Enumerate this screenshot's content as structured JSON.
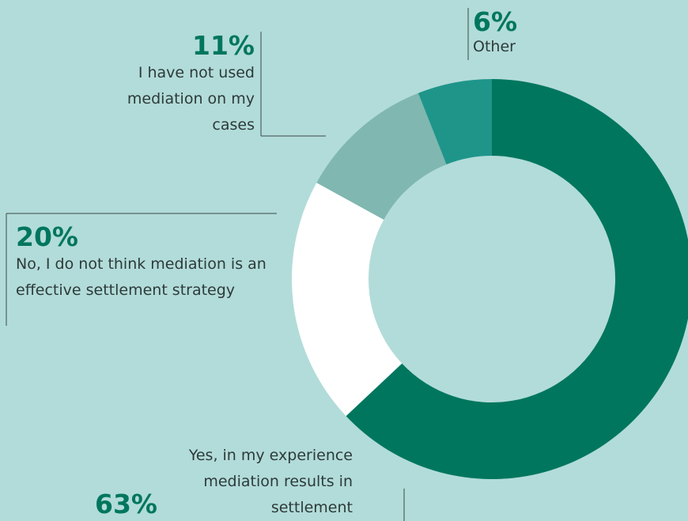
{
  "chart_data": {
    "type": "donut",
    "categories": [
      "Yes, in my experience mediation results in settlement",
      "No, I do not think mediation is an effective settlement strategy",
      "I have not used mediation on my cases",
      "Other"
    ],
    "values": [
      63,
      20,
      11,
      6
    ],
    "value_labels": [
      "63%",
      "20%",
      "11%",
      "6%"
    ],
    "colors": [
      "#00765f",
      "#ffffff",
      "#80b7b1",
      "#1f958a"
    ]
  }
}
